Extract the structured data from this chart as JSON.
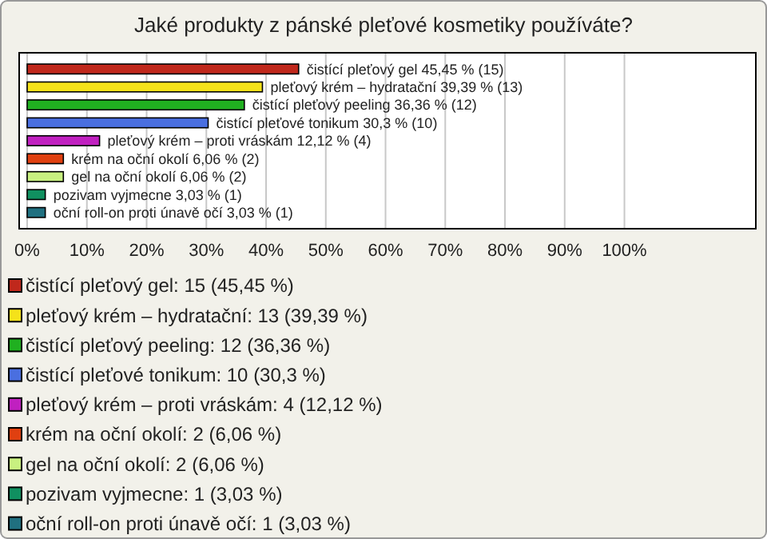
{
  "chart_data": {
    "type": "bar",
    "orientation": "horizontal",
    "title": "Jaké produkty z pánské pleťové kosmetiky používáte?",
    "categories": [
      null,
      null,
      null,
      null,
      null,
      null,
      null,
      null,
      null
    ],
    "series": [
      {
        "name": "čistící pleťový gel: 15 (45,45 %)",
        "color": "#c0281c",
        "values": [
          45.45,
          null,
          null,
          null,
          null,
          null,
          null,
          null,
          null
        ],
        "value_labels": [
          "čistící pleťový gel 45,45 % (15)",
          null,
          null,
          null,
          null,
          null,
          null,
          null,
          null
        ]
      },
      {
        "name": "pleťový krém – hydratační: 13 (39,39 %)",
        "color": "#f5e21a",
        "values": [
          null,
          39.39,
          null,
          null,
          null,
          null,
          null,
          null,
          null
        ],
        "value_labels": [
          null,
          "pleťový krém – hydratační 39,39 % (13)",
          null,
          null,
          null,
          null,
          null,
          null,
          null
        ]
      },
      {
        "name": "čistící pleťový peeling: 12 (36,36 %)",
        "color": "#20b020",
        "values": [
          null,
          null,
          36.36,
          null,
          null,
          null,
          null,
          null,
          null
        ],
        "value_labels": [
          null,
          null,
          "čistící pleťový peeling 36,36 % (12)",
          null,
          null,
          null,
          null,
          null,
          null
        ]
      },
      {
        "name": "čistící pleťové tonikum: 10 (30,3 %)",
        "color": "#4a6fe0",
        "values": [
          null,
          null,
          null,
          30.3,
          null,
          null,
          null,
          null,
          null
        ],
        "value_labels": [
          null,
          null,
          null,
          "čistící pleťové tonikum 30,3 % (10)",
          null,
          null,
          null,
          null,
          null
        ]
      },
      {
        "name": "pleťový krém – proti vráskám: 4 (12,12 %)",
        "color": "#c020c0",
        "values": [
          null,
          null,
          null,
          null,
          12.12,
          null,
          null,
          null,
          null
        ],
        "value_labels": [
          null,
          null,
          null,
          null,
          "pleťový krém – proti vráskám 12,12 % (4)",
          null,
          null,
          null,
          null
        ]
      },
      {
        "name": "krém na oční okolí: 2 (6,06 %)",
        "color": "#e04010",
        "values": [
          null,
          null,
          null,
          null,
          null,
          6.06,
          null,
          null,
          null
        ],
        "value_labels": [
          null,
          null,
          null,
          null,
          null,
          "krém na oční okolí 6,06 % (2)",
          null,
          null,
          null
        ]
      },
      {
        "name": "gel na oční okolí: 2 (6,06 %)",
        "color": "#c8f080",
        "values": [
          null,
          null,
          null,
          null,
          null,
          null,
          6.06,
          null,
          null
        ],
        "value_labels": [
          null,
          null,
          null,
          null,
          null,
          null,
          "gel na oční okolí 6,06 % (2)",
          null,
          null
        ]
      },
      {
        "name": "pozivam vyjmecne: 1 (3,03 %)",
        "color": "#109060",
        "values": [
          null,
          null,
          null,
          null,
          null,
          null,
          null,
          3.03,
          null
        ],
        "value_labels": [
          null,
          null,
          null,
          null,
          null,
          null,
          null,
          "pozivam vyjmecne 3,03 % (1)",
          null
        ]
      },
      {
        "name": "oční roll-on proti únavě očí: 1 (3,03 %)",
        "color": "#207080",
        "values": [
          null,
          null,
          null,
          null,
          null,
          null,
          null,
          null,
          3.03
        ],
        "value_labels": [
          null,
          null,
          null,
          null,
          null,
          null,
          null,
          null,
          "oční roll-on proti únavě očí 3,03 % (1)"
        ]
      }
    ],
    "xlim": [
      0,
      122
    ],
    "xticks": [
      {
        "value": 0,
        "label": "0%"
      },
      {
        "value": 10,
        "label": "10%"
      },
      {
        "value": 20,
        "label": "20%"
      },
      {
        "value": 30,
        "label": "30%"
      },
      {
        "value": 40,
        "label": "40%"
      },
      {
        "value": 50,
        "label": "50%"
      },
      {
        "value": 60,
        "label": "60%"
      },
      {
        "value": 70,
        "label": "70%"
      },
      {
        "value": 80,
        "label": "80%"
      },
      {
        "value": 90,
        "label": "90%"
      },
      {
        "value": 100,
        "label": "100%"
      }
    ],
    "grid": "x",
    "legend": "bottom"
  }
}
